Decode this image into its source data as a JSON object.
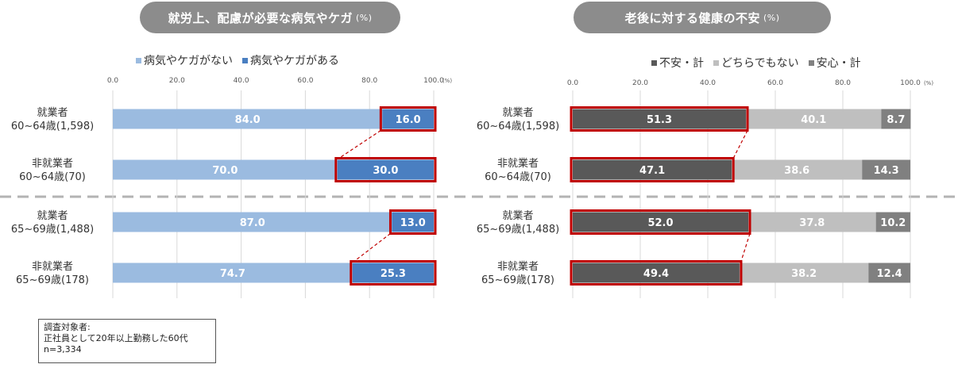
{
  "left_panel": {
    "title": "就労上、配慮が必要な病気やケガ",
    "title_unit": "(%)"
  },
  "right_panel": {
    "title": "老後に対する健康の不安",
    "title_unit": "(%)"
  },
  "note": {
    "line1": "調査対象者:",
    "line2": "正社員として20年以上勤務した60代",
    "line3": "n=3,334"
  },
  "chart_data": [
    {
      "type": "bar",
      "orientation": "horizontal",
      "stacked": true,
      "categories": [
        [
          "就業者",
          "60~64歳(1,598)"
        ],
        [
          "非就業者",
          "60~64歳(70)"
        ],
        [
          "就業者",
          "65~69歳(1,488)"
        ],
        [
          "非就業者",
          "65~69歳(178)"
        ]
      ],
      "series": [
        {
          "name": "病気やケガがない",
          "color": "#9bbbe0",
          "values": [
            84.0,
            70.0,
            87.0,
            74.7
          ]
        },
        {
          "name": "病気やケガがある",
          "color": "#4a7fc1",
          "values": [
            16.0,
            30.0,
            13.0,
            25.3
          ]
        }
      ],
      "highlight_series": "病気やケガがある",
      "highlight_color": "#c00000",
      "xlim": [
        0,
        100
      ],
      "xticks": [
        "0.0",
        "20.0",
        "40.0",
        "60.0",
        "80.0",
        "100.0"
      ],
      "x_unit": "(%)",
      "legend_position": "top",
      "grid": true
    },
    {
      "type": "bar",
      "orientation": "horizontal",
      "stacked": true,
      "categories": [
        [
          "就業者",
          "60~64歳(1,598)"
        ],
        [
          "非就業者",
          "60~64歳(70)"
        ],
        [
          "就業者",
          "65~69歳(1,488)"
        ],
        [
          "非就業者",
          "65~69歳(178)"
        ]
      ],
      "series": [
        {
          "name": "不安・計",
          "color": "#595959",
          "values": [
            51.3,
            47.1,
            52.0,
            49.4
          ]
        },
        {
          "name": "どちらでもない",
          "color": "#bfbfbf",
          "values": [
            40.1,
            38.6,
            37.8,
            38.2
          ]
        },
        {
          "name": "安心・計",
          "color": "#808080",
          "values": [
            8.7,
            14.3,
            10.2,
            12.4
          ]
        }
      ],
      "highlight_series": "不安・計",
      "highlight_color": "#c00000",
      "xlim": [
        0,
        100
      ],
      "xticks": [
        "0.0",
        "20.0",
        "40.0",
        "60.0",
        "80.0",
        "100.0"
      ],
      "x_unit": "(%)",
      "legend_position": "top",
      "grid": true
    }
  ]
}
